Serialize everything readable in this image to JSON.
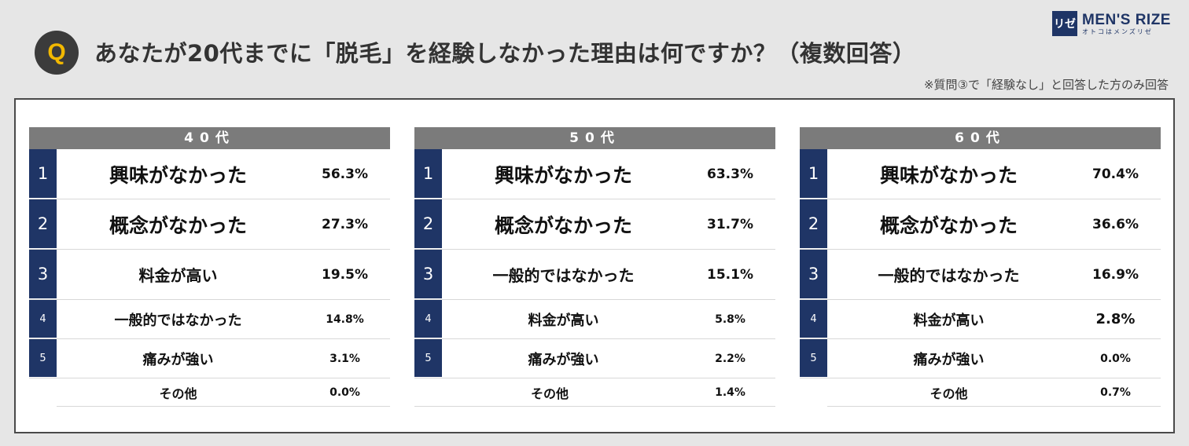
{
  "header": {
    "badge": "Q",
    "question": "あなたが20代までに「脱毛」を経験しなかった理由は何ですか？（複数回答）",
    "note": "※質問③で「経験なし」と回答した方のみ回答"
  },
  "logo": {
    "mark": "リゼ",
    "name": "MEN'S RIZE",
    "tagline": "オトコはメンズリゼ"
  },
  "tables": [
    {
      "header": "40代",
      "rows": [
        {
          "rank": "1",
          "label": "興味がなかった",
          "pct": "56.3%"
        },
        {
          "rank": "2",
          "label": "概念がなかった",
          "pct": "27.3%"
        },
        {
          "rank": "3",
          "label": "料金が高い",
          "pct": "19.5%"
        },
        {
          "rank": "4",
          "label": "一般的ではなかった",
          "pct": "14.8%"
        },
        {
          "rank": "5",
          "label": "痛みが強い",
          "pct": "3.1%"
        }
      ],
      "other": {
        "label": "その他",
        "pct": "0.0%"
      }
    },
    {
      "header": "50代",
      "rows": [
        {
          "rank": "1",
          "label": "興味がなかった",
          "pct": "63.3%"
        },
        {
          "rank": "2",
          "label": "概念がなかった",
          "pct": "31.7%"
        },
        {
          "rank": "3",
          "label": "一般的ではなかった",
          "pct": "15.1%"
        },
        {
          "rank": "4",
          "label": "料金が高い",
          "pct": "5.8%"
        },
        {
          "rank": "5",
          "label": "痛みが強い",
          "pct": "2.2%"
        }
      ],
      "other": {
        "label": "その他",
        "pct": "1.4%"
      }
    },
    {
      "header": "60代",
      "rows": [
        {
          "rank": "1",
          "label": "興味がなかった",
          "pct": "70.4%"
        },
        {
          "rank": "2",
          "label": "概念がなかった",
          "pct": "36.6%"
        },
        {
          "rank": "3",
          "label": "一般的ではなかった",
          "pct": "16.9%"
        },
        {
          "rank": "4",
          "label": "料金が高い",
          "pct": "2.8%"
        },
        {
          "rank": "5",
          "label": "痛みが強い",
          "pct": "0.0%"
        }
      ],
      "other": {
        "label": "その他",
        "pct": "0.7%"
      }
    }
  ],
  "colors": {
    "rank_bg": "#1f3566",
    "header_bg": "#7b7b7b",
    "badge_q": "#f2b800"
  }
}
